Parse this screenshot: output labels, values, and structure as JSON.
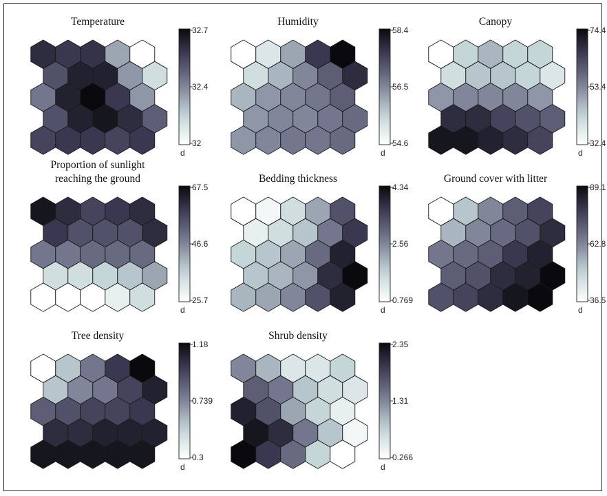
{
  "chart_data": [
    {
      "type": "heatmap",
      "title": "Temperature",
      "title_lines": [
        "Temperature"
      ],
      "colorbar_ticks": [
        "32.7",
        "32.4",
        "32"
      ],
      "colorbar_label": "d",
      "range": [
        32,
        32.7
      ],
      "grid_rows": 5,
      "grid_cols": 5,
      "values": [
        [
          0.85,
          0.8,
          0.82,
          0.4,
          0.0
        ],
        [
          0.7,
          0.9,
          0.9,
          0.45,
          0.2
        ],
        [
          0.55,
          0.9,
          1.0,
          0.8,
          0.45
        ],
        [
          0.7,
          0.9,
          0.95,
          0.85,
          0.65
        ],
        [
          0.75,
          0.8,
          0.8,
          0.75,
          0.8
        ]
      ]
    },
    {
      "type": "heatmap",
      "title": "Humidity",
      "title_lines": [
        "Humidity"
      ],
      "colorbar_ticks": [
        "58.4",
        "56.5",
        "54.6"
      ],
      "colorbar_label": "d",
      "range": [
        54.6,
        58.4
      ],
      "grid_rows": 5,
      "grid_cols": 5,
      "values": [
        [
          0.0,
          0.15,
          0.4,
          0.8,
          1.0
        ],
        [
          0.2,
          0.35,
          0.5,
          0.65,
          0.85
        ],
        [
          0.35,
          0.45,
          0.5,
          0.55,
          0.65
        ],
        [
          0.45,
          0.5,
          0.5,
          0.55,
          0.6
        ],
        [
          0.45,
          0.5,
          0.55,
          0.55,
          0.6
        ]
      ]
    },
    {
      "type": "heatmap",
      "title": "Canopy",
      "title_lines": [
        "Canopy"
      ],
      "colorbar_ticks": [
        "74.4",
        "53.4",
        "32.4"
      ],
      "colorbar_label": "d",
      "range": [
        32.4,
        74.4
      ],
      "grid_rows": 5,
      "grid_cols": 5,
      "values": [
        [
          0.0,
          0.25,
          0.35,
          0.25,
          0.25
        ],
        [
          0.2,
          0.3,
          0.3,
          0.25,
          0.15
        ],
        [
          0.45,
          0.5,
          0.5,
          0.5,
          0.45
        ],
        [
          0.85,
          0.85,
          0.75,
          0.7,
          0.65
        ],
        [
          0.95,
          0.95,
          0.9,
          0.85,
          0.75
        ]
      ]
    },
    {
      "type": "heatmap",
      "title": "Proportion of sunlight reaching the ground",
      "title_lines": [
        "Proportion of sunlight",
        "reaching the ground"
      ],
      "colorbar_ticks": [
        "67.5",
        "46.6",
        "25.7"
      ],
      "colorbar_label": "d",
      "range": [
        25.7,
        67.5
      ],
      "grid_rows": 5,
      "grid_cols": 5,
      "values": [
        [
          0.95,
          0.85,
          0.75,
          0.8,
          0.85
        ],
        [
          0.8,
          0.7,
          0.7,
          0.7,
          0.85
        ],
        [
          0.55,
          0.55,
          0.6,
          0.6,
          0.6
        ],
        [
          0.2,
          0.2,
          0.25,
          0.3,
          0.4
        ],
        [
          0.0,
          0.0,
          0.0,
          0.1,
          0.2
        ]
      ]
    },
    {
      "type": "heatmap",
      "title": "Bedding thickness",
      "title_lines": [
        "Bedding thickness"
      ],
      "colorbar_ticks": [
        "4.34",
        "2.56",
        "0.769"
      ],
      "colorbar_label": "d",
      "range": [
        0.769,
        4.34
      ],
      "grid_rows": 5,
      "grid_cols": 5,
      "values": [
        [
          0.0,
          0.05,
          0.2,
          0.4,
          0.7
        ],
        [
          0.1,
          0.2,
          0.3,
          0.55,
          0.8
        ],
        [
          0.25,
          0.3,
          0.4,
          0.6,
          0.9
        ],
        [
          0.3,
          0.35,
          0.45,
          0.85,
          1.0
        ],
        [
          0.35,
          0.4,
          0.5,
          0.7,
          0.9
        ]
      ]
    },
    {
      "type": "heatmap",
      "title": "Ground cover with litter",
      "title_lines": [
        "Ground cover with litter"
      ],
      "colorbar_ticks": [
        "89.1",
        "62.8",
        "36.5"
      ],
      "colorbar_label": "d",
      "range": [
        36.5,
        89.1
      ],
      "grid_rows": 5,
      "grid_cols": 5,
      "values": [
        [
          0.0,
          0.3,
          0.5,
          0.65,
          0.75
        ],
        [
          0.35,
          0.5,
          0.6,
          0.7,
          0.85
        ],
        [
          0.55,
          0.6,
          0.65,
          0.8,
          0.9
        ],
        [
          0.65,
          0.7,
          0.85,
          0.9,
          1.0
        ],
        [
          0.7,
          0.75,
          0.85,
          0.95,
          1.0
        ]
      ]
    },
    {
      "type": "heatmap",
      "title": "Tree density",
      "title_lines": [
        "Tree density"
      ],
      "colorbar_ticks": [
        "1.18",
        "0.739",
        "0.3"
      ],
      "colorbar_label": "d",
      "range": [
        0.3,
        1.18
      ],
      "grid_rows": 5,
      "grid_cols": 5,
      "values": [
        [
          0.0,
          0.3,
          0.55,
          0.8,
          1.0
        ],
        [
          0.3,
          0.5,
          0.55,
          0.75,
          0.9
        ],
        [
          0.65,
          0.7,
          0.75,
          0.75,
          0.8
        ],
        [
          0.85,
          0.85,
          0.9,
          0.9,
          0.9
        ],
        [
          0.95,
          0.95,
          0.95,
          0.95,
          0.95
        ]
      ]
    },
    {
      "type": "heatmap",
      "title": "Shrub density",
      "title_lines": [
        "Shrub density"
      ],
      "colorbar_ticks": [
        "2.35",
        "1.31",
        "0.266"
      ],
      "colorbar_label": "d",
      "range": [
        0.266,
        2.35
      ],
      "grid_rows": 5,
      "grid_cols": 5,
      "values": [
        [
          0.5,
          0.35,
          0.15,
          0.15,
          0.25
        ],
        [
          0.65,
          0.55,
          0.3,
          0.2,
          0.15
        ],
        [
          0.9,
          0.7,
          0.4,
          0.25,
          0.1
        ],
        [
          0.95,
          0.85,
          0.55,
          0.3,
          0.05
        ],
        [
          1.0,
          0.8,
          0.6,
          0.25,
          0.0
        ]
      ]
    }
  ]
}
